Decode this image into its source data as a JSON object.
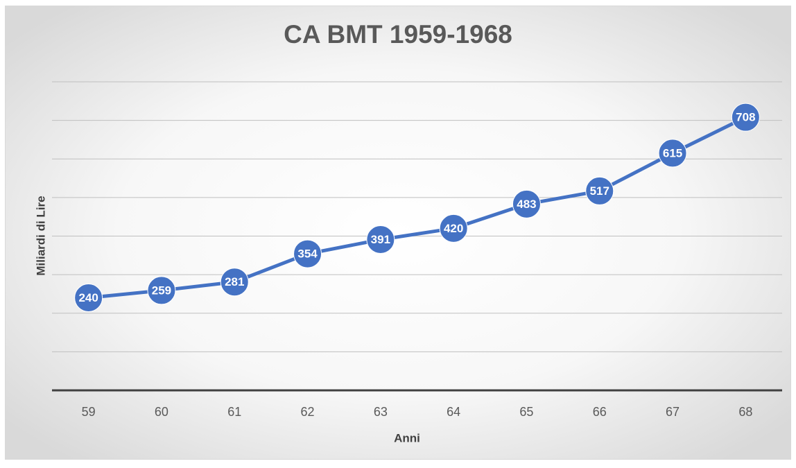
{
  "chart_data": {
    "type": "line",
    "title": "CA BMT 1959-1968",
    "x_label": "Anni",
    "y_label": "Miliardi di Lire",
    "categories": [
      "59",
      "60",
      "61",
      "62",
      "63",
      "64",
      "65",
      "66",
      "67",
      "68"
    ],
    "values": [
      240,
      259,
      281,
      354,
      391,
      420,
      483,
      517,
      615,
      708
    ],
    "color": "#4472c4",
    "ylim": [
      0,
      800
    ],
    "yticks": [
      0,
      100,
      200,
      300,
      400,
      500,
      600,
      700,
      800
    ],
    "grid": true
  }
}
